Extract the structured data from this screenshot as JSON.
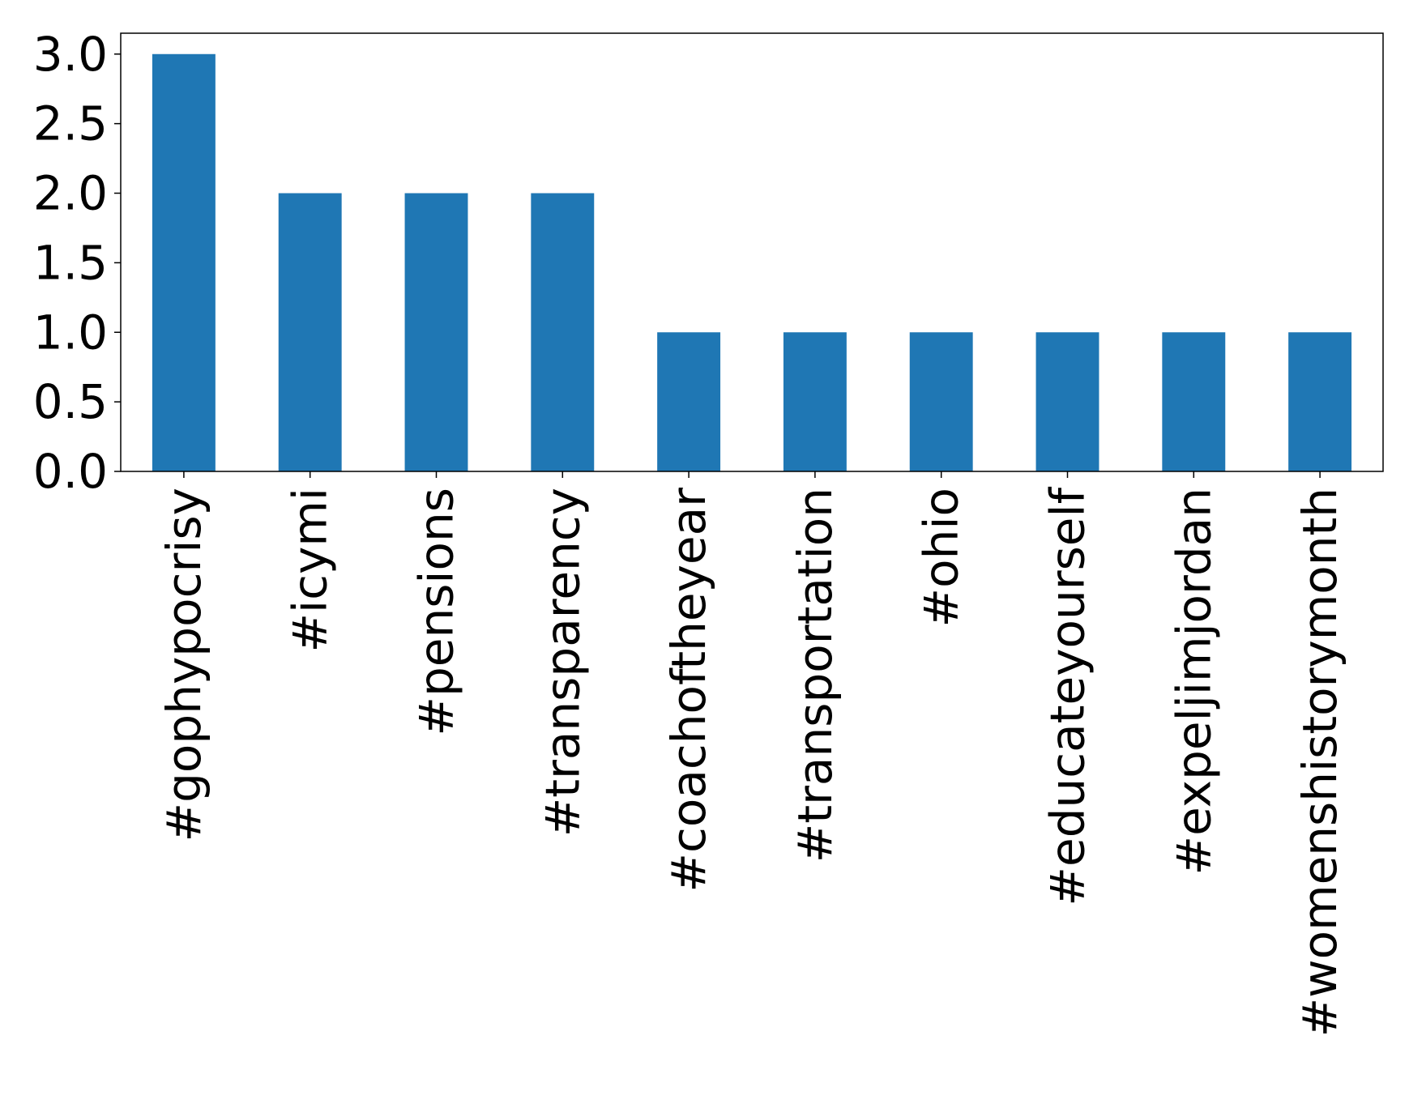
{
  "chart_data": {
    "type": "bar",
    "categories": [
      "#gophypocrisy",
      "#icymi",
      "#pensions",
      "#transparency",
      "#coachoftheyear",
      "#transportation",
      "#ohio",
      "#educateyourself",
      "#expeljimjordan",
      "#womenshistorymonth"
    ],
    "values": [
      3,
      2,
      2,
      2,
      1,
      1,
      1,
      1,
      1,
      1
    ],
    "color": "#1f77b4",
    "ylim": [
      0,
      3.15
    ],
    "yticks": [
      {
        "value": 0,
        "label": "0.0"
      },
      0.5,
      {
        "value": 1,
        "label": "1.0"
      },
      1.5,
      {
        "value": 2,
        "label": "2.0"
      },
      2.5,
      {
        "value": 3,
        "label": "3.0"
      }
    ],
    "grid": false
  }
}
